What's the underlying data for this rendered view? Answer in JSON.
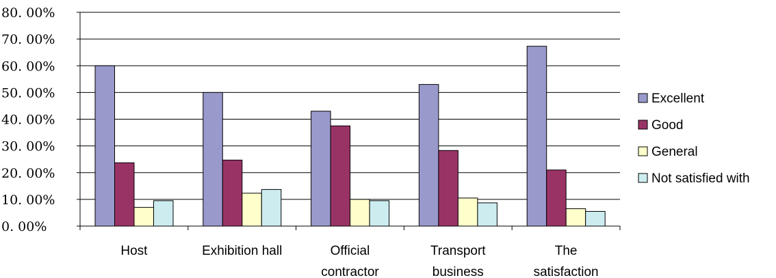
{
  "chart_data": {
    "type": "bar",
    "categories": [
      [
        "Host"
      ],
      [
        "Exhibition hall"
      ],
      [
        "Official",
        "contractor"
      ],
      [
        "Transport",
        "business"
      ],
      [
        "The",
        "satisfaction"
      ]
    ],
    "series": [
      {
        "name": "Excellent",
        "color": "#9999CC",
        "values": [
          0.6,
          0.5,
          0.43,
          0.53,
          0.673
        ]
      },
      {
        "name": "Good",
        "color": "#993366",
        "values": [
          0.237,
          0.247,
          0.375,
          0.283,
          0.21
        ]
      },
      {
        "name": "General",
        "color": "#FFFFCC",
        "values": [
          0.07,
          0.123,
          0.1,
          0.105,
          0.065
        ]
      },
      {
        "name": "Not satisfied with",
        "color": "#CCECF0",
        "values": [
          0.095,
          0.137,
          0.095,
          0.087,
          0.055
        ]
      }
    ],
    "yticks": [
      "0. 00%",
      "10. 00%",
      "20. 00%",
      "30. 00%",
      "40. 00%",
      "50. 00%",
      "60. 00%",
      "70. 00%",
      "80. 00%"
    ],
    "ylim": [
      0,
      0.8
    ],
    "grid": true,
    "legend_position": "right"
  }
}
